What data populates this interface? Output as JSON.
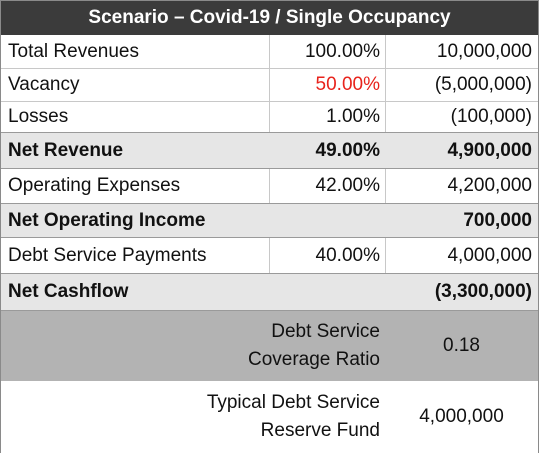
{
  "table": {
    "title": "Scenario – Covid-19 / Single Occupancy",
    "rows": [
      {
        "label": "Total Revenues",
        "pct": "100.00%",
        "amount": "10,000,000"
      },
      {
        "label": "Vacancy",
        "pct": "50.00%",
        "amount": "(5,000,000)"
      },
      {
        "label": "Losses",
        "pct": "1.00%",
        "amount": "(100,000)"
      },
      {
        "label": "Net Revenue",
        "pct": "49.00%",
        "amount": "4,900,000"
      },
      {
        "label": "Operating Expenses",
        "pct": "42.00%",
        "amount": "4,200,000"
      },
      {
        "label": "Net Operating Income",
        "pct": "",
        "amount": "700,000"
      },
      {
        "label": "Debt Service Payments",
        "pct": "40.00%",
        "amount": "4,000,000"
      },
      {
        "label": "Net Cashflow",
        "pct": "",
        "amount": "(3,300,000)"
      }
    ],
    "ratio": {
      "label_line1": "Debt Service",
      "label_line2": "Coverage Ratio",
      "value": "0.18"
    },
    "reserve": {
      "label_line1": "Typical Debt Service",
      "label_line2": "Reserve Fund",
      "value": "4,000,000"
    },
    "colors": {
      "header_bg": "#3b3b3b",
      "highlight_red": "#e8231c",
      "subtotal_bg": "#e6e6e6",
      "ratio_bg": "#b3b3b3"
    }
  }
}
